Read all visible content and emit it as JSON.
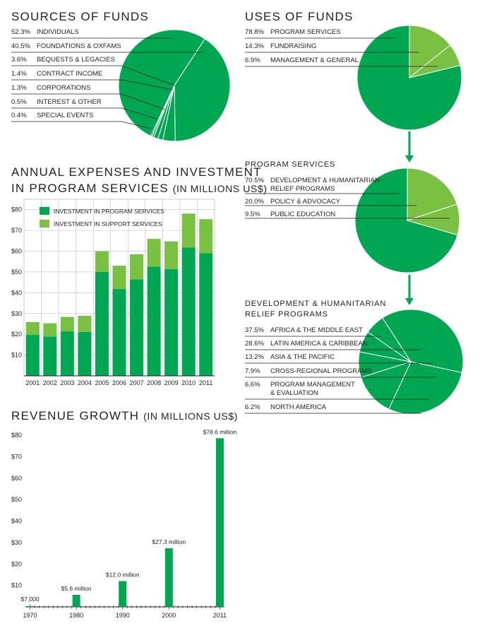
{
  "colors": {
    "dark_green": "#00a651",
    "light_green": "#7ac143",
    "line": "#231f20"
  },
  "sources": {
    "title": "SOURCES OF FUNDS",
    "items": [
      {
        "pct": "52.3%",
        "label": "INDIVIDUALS"
      },
      {
        "pct": "40.5%",
        "label": "FOUNDATIONS & OXFAMS"
      },
      {
        "pct": "3.6%",
        "label": "BEQUESTS & LEGACIES"
      },
      {
        "pct": "1.4%",
        "label": "CONTRACT INCOME"
      },
      {
        "pct": "1.3%",
        "label": "CORPORATIONS"
      },
      {
        "pct": "0.5%",
        "label": "INTEREST & OTHER"
      },
      {
        "pct": "0.4%",
        "label": "SPECIAL EVENTS"
      }
    ]
  },
  "uses": {
    "title": "USES OF FUNDS",
    "items": [
      {
        "pct": "78.8%",
        "label": "PROGRAM SERVICES"
      },
      {
        "pct": "14.3%",
        "label": "FUNDRAISING"
      },
      {
        "pct": "6.9%",
        "label": "MANAGEMENT & GENERAL"
      }
    ]
  },
  "program": {
    "title": "PROGRAM SERVICES",
    "items": [
      {
        "pct": "70.5%",
        "label": "DEVELOPMENT & HUMANITARIAN",
        "label2": "RELIEF PROGRAMS"
      },
      {
        "pct": "20.0%",
        "label": "POLICY & ADVOCACY"
      },
      {
        "pct": "9.5%",
        "label": "PUBLIC EDUCATION"
      }
    ]
  },
  "relief": {
    "title_line1": "DEVELOPMENT & HUMANITARIAN",
    "title_line2": "RELIEF PROGRAMS",
    "items": [
      {
        "pct": "37.5%",
        "label": "AFRICA & THE MIDDLE EAST"
      },
      {
        "pct": "28.6%",
        "label": "LATIN AMERICA & CARIBBEAN"
      },
      {
        "pct": "13.2%",
        "label": "ASIA & THE PACIFIC"
      },
      {
        "pct": "7.9%",
        "label": "CROSS-REGIONAL PROGRAMS"
      },
      {
        "pct": "6.6%",
        "label": "PROGRAM MANAGEMENT",
        "label2": "& EVALUATION"
      },
      {
        "pct": "6.2%",
        "label": "NORTH AMERICA"
      }
    ]
  },
  "expenses": {
    "title_line1": "ANNUAL EXPENSES AND INVESTMENT",
    "title_line2": "IN PROGRAM SERVICES",
    "title_unit": "(IN MILLIONS US$)",
    "legend": [
      "INVESTMENT IN PROGRAM SERVICES",
      "INVESTMENT IN SUPPORT SERVICES"
    ],
    "yticks": [
      "$80",
      "$70",
      "$60",
      "$50",
      "$40",
      "$30",
      "$20",
      "$10"
    ]
  },
  "revenue": {
    "title": "REVENUE GROWTH",
    "title_unit": "(IN MILLIONS US$)",
    "yticks": [
      "$80",
      "$70",
      "$60",
      "$50",
      "$40",
      "$30",
      "$20",
      "$10"
    ],
    "xticks": [
      "1970",
      "1980",
      "1990",
      "2000",
      "2011"
    ],
    "labels": [
      "$7,000",
      "$5.6 million",
      "$12.0 million",
      "$27.3 million",
      "$78.6 million"
    ]
  },
  "chart_data": [
    {
      "type": "pie",
      "title": "SOURCES OF FUNDS",
      "categories": [
        "INDIVIDUALS",
        "FOUNDATIONS & OXFAMS",
        "BEQUESTS & LEGACIES",
        "CONTRACT INCOME",
        "CORPORATIONS",
        "INTEREST & OTHER",
        "SPECIAL EVENTS"
      ],
      "values": [
        52.3,
        40.5,
        3.6,
        1.4,
        1.3,
        0.5,
        0.4
      ]
    },
    {
      "type": "pie",
      "title": "USES OF FUNDS",
      "categories": [
        "PROGRAM SERVICES",
        "FUNDRAISING",
        "MANAGEMENT & GENERAL"
      ],
      "values": [
        78.8,
        14.3,
        6.9
      ]
    },
    {
      "type": "pie",
      "title": "PROGRAM SERVICES",
      "categories": [
        "DEVELOPMENT & HUMANITARIAN RELIEF PROGRAMS",
        "POLICY & ADVOCACY",
        "PUBLIC EDUCATION"
      ],
      "values": [
        70.5,
        20.0,
        9.5
      ]
    },
    {
      "type": "pie",
      "title": "DEVELOPMENT & HUMANITARIAN RELIEF PROGRAMS",
      "categories": [
        "AFRICA & THE MIDDLE EAST",
        "LATIN AMERICA & CARIBBEAN",
        "ASIA & THE PACIFIC",
        "CROSS-REGIONAL PROGRAMS",
        "PROGRAM MANAGEMENT & EVALUATION",
        "NORTH AMERICA"
      ],
      "values": [
        37.5,
        28.6,
        13.2,
        7.9,
        6.6,
        6.2
      ]
    },
    {
      "type": "bar",
      "stacked": true,
      "title": "ANNUAL EXPENSES AND INVESTMENT IN PROGRAM SERVICES (IN MILLIONS US$)",
      "categories": [
        "2001",
        "2002",
        "2003",
        "2004",
        "2005",
        "2006",
        "2007",
        "2008",
        "2009",
        "2010",
        "2011"
      ],
      "series": [
        {
          "name": "INVESTMENT IN PROGRAM SERVICES",
          "values": [
            19.7,
            18.9,
            21.4,
            21.1,
            50.0,
            41.8,
            46.5,
            52.5,
            51.4,
            61.7,
            59.0
          ]
        },
        {
          "name": "INVESTMENT IN SUPPORT SERVICES",
          "values": [
            6.2,
            6.4,
            7.0,
            7.8,
            10.0,
            11.2,
            12.0,
            13.4,
            13.3,
            16.4,
            16.4
          ]
        }
      ],
      "ylim": [
        0,
        85
      ],
      "grid": true,
      "legend_position": "top-left"
    },
    {
      "type": "bar",
      "title": "REVENUE GROWTH (IN MILLIONS US$)",
      "categories": [
        "1970",
        "1980",
        "1990",
        "2000",
        "2011"
      ],
      "values": [
        0.007,
        5.6,
        12.0,
        27.3,
        78.6
      ],
      "ylim": [
        0,
        82
      ],
      "grid": false
    }
  ]
}
